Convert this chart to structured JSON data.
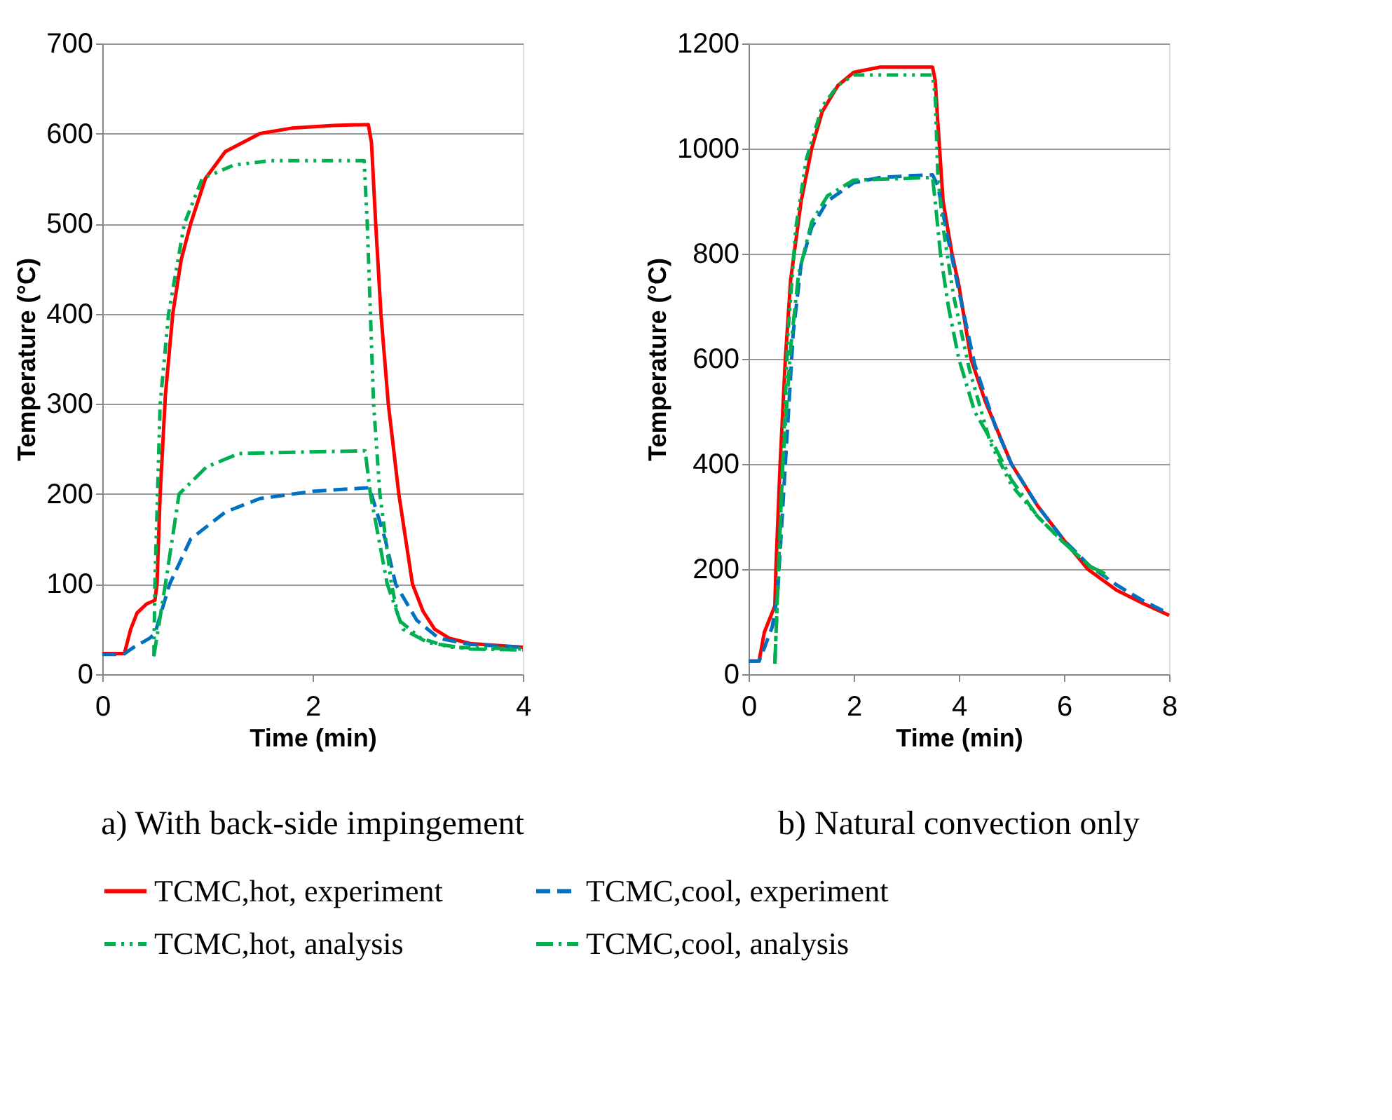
{
  "chart_data": [
    {
      "type": "line",
      "title": "a) With back-side impingement",
      "xlabel": "Time (min)",
      "ylabel": "Temperature (°C)",
      "xlim": [
        0,
        4
      ],
      "xticks": [
        0,
        2,
        4
      ],
      "ylim": [
        0,
        700
      ],
      "yticks": [
        0,
        100,
        200,
        300,
        400,
        500,
        600,
        700
      ],
      "grid": "y",
      "legend": "bottom",
      "series": [
        {
          "name": "TCMC,hot, experiment",
          "color": "#ff0000",
          "line_style": "solid",
          "x": [
            0,
            0.21,
            0.27,
            0.33,
            0.42,
            0.5,
            0.52,
            0.55,
            0.6,
            0.67,
            0.75,
            0.84,
            0.98,
            1.17,
            1.5,
            1.8,
            2.2,
            2.53,
            2.56,
            2.6,
            2.65,
            2.72,
            2.82,
            2.95,
            3.05,
            3.16,
            3.3,
            3.5,
            4.0
          ],
          "values": [
            23,
            23,
            50,
            68,
            78,
            82,
            100,
            200,
            310,
            400,
            460,
            500,
            550,
            580,
            600,
            606,
            609,
            610,
            590,
            500,
            400,
            300,
            200,
            100,
            70,
            50,
            40,
            34,
            30
          ]
        },
        {
          "name": "TCMC,cool, experiment",
          "color": "#0070c0",
          "line_style": "dashed",
          "x": [
            0,
            0.2,
            0.3,
            0.45,
            0.5,
            0.64,
            0.84,
            1.17,
            1.5,
            2.0,
            2.54,
            2.69,
            2.79,
            2.99,
            3.2,
            3.5,
            4.0
          ],
          "values": [
            22,
            22,
            30,
            40,
            45,
            100,
            150,
            180,
            195,
            203,
            207,
            150,
            100,
            60,
            40,
            33,
            30
          ]
        },
        {
          "name": "TCMC,hot, analysis",
          "color": "#00b050",
          "line_style": "dashdotdot",
          "x": [
            0.49,
            0.5,
            0.55,
            0.63,
            0.78,
            0.95,
            1.25,
            1.6,
            2.49,
            2.52,
            2.58,
            2.64,
            2.75,
            2.82,
            3.03,
            3.3,
            4.0
          ],
          "values": [
            20,
            100,
            300,
            400,
            500,
            550,
            565,
            570,
            570,
            500,
            300,
            200,
            100,
            60,
            40,
            30,
            28
          ]
        },
        {
          "name": "TCMC,cool, analysis",
          "color": "#00b050",
          "line_style": "dashdot",
          "x": [
            0.49,
            0.6,
            0.73,
            0.99,
            1.3,
            2.5,
            2.55,
            2.71,
            2.86,
            3.1,
            3.5,
            4.0
          ],
          "values": [
            20,
            100,
            200,
            230,
            245,
            248,
            200,
            100,
            50,
            35,
            28,
            27
          ]
        }
      ]
    },
    {
      "type": "line",
      "title": "b) Natural convection only",
      "xlabel": "Time (min)",
      "ylabel": "Temperature (°C)",
      "xlim": [
        0,
        8
      ],
      "xticks": [
        0,
        2,
        4,
        6,
        8
      ],
      "ylim": [
        0,
        1200
      ],
      "yticks": [
        0,
        200,
        400,
        600,
        800,
        1000,
        1200
      ],
      "grid": "y",
      "legend": "bottom",
      "series": [
        {
          "name": "TCMC,hot, experiment",
          "color": "#ff0000",
          "line_style": "solid",
          "x": [
            0,
            0.2,
            0.3,
            0.5,
            0.52,
            0.6,
            0.7,
            0.8,
            1.0,
            1.2,
            1.4,
            1.7,
            2.0,
            2.5,
            3.0,
            3.5,
            3.55,
            3.6,
            3.7,
            3.87,
            4.0,
            4.23,
            4.5,
            5.0,
            5.5,
            6.0,
            6.45,
            7.0,
            7.5,
            8.0
          ],
          "values": [
            25,
            25,
            80,
            130,
            200,
            400,
            600,
            750,
            900,
            1000,
            1070,
            1120,
            1145,
            1155,
            1155,
            1155,
            1130,
            1050,
            900,
            800,
            740,
            600,
            520,
            400,
            320,
            255,
            200,
            160,
            135,
            112
          ]
        },
        {
          "name": "TCMC,cool, experiment",
          "color": "#0070c0",
          "line_style": "dashed",
          "x": [
            0,
            0.2,
            0.3,
            0.45,
            0.55,
            0.7,
            0.85,
            1.0,
            1.2,
            1.5,
            2.0,
            2.5,
            3.0,
            3.5,
            3.6,
            3.75,
            4.0,
            4.3,
            4.7,
            5.0,
            5.5,
            6.0,
            6.5,
            7.0,
            7.5,
            8.0
          ],
          "values": [
            25,
            25,
            50,
            90,
            150,
            400,
            650,
            780,
            850,
            900,
            935,
            945,
            948,
            950,
            930,
            850,
            730,
            590,
            470,
            400,
            320,
            255,
            205,
            170,
            140,
            115
          ]
        },
        {
          "name": "TCMC,hot, analysis",
          "color": "#00b050",
          "line_style": "dashdotdot",
          "x": [
            0.5,
            0.55,
            0.65,
            0.75,
            0.9,
            1.1,
            1.4,
            1.7,
            2.0,
            3.5,
            3.55,
            3.6,
            3.7,
            3.9,
            4.2,
            4.6,
            5.0,
            5.5,
            6.0,
            6.5,
            6.8
          ],
          "values": [
            20,
            150,
            400,
            650,
            850,
            980,
            1080,
            1120,
            1140,
            1140,
            1100,
            950,
            850,
            720,
            580,
            440,
            360,
            300,
            250,
            205,
            185
          ]
        },
        {
          "name": "TCMC,cool, analysis",
          "color": "#00b050",
          "line_style": "dashdot",
          "x": [
            0.5,
            0.55,
            0.65,
            0.8,
            0.95,
            1.2,
            1.5,
            2.0,
            3.5,
            3.55,
            3.65,
            3.8,
            4.0,
            4.3,
            4.7,
            5.0,
            5.5,
            6.0,
            6.5,
            6.8
          ],
          "values": [
            20,
            150,
            400,
            620,
            760,
            860,
            910,
            940,
            945,
            900,
            800,
            700,
            600,
            500,
            430,
            370,
            300,
            250,
            205,
            190
          ]
        }
      ]
    }
  ]
}
